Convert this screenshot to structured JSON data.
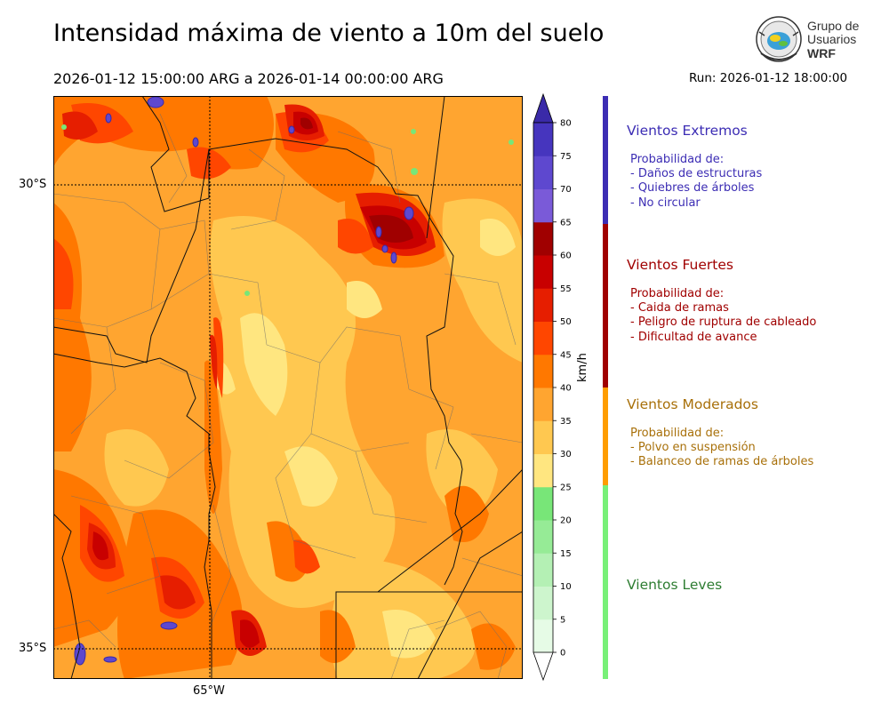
{
  "header": {
    "title": "Intensidad máxima de viento a 10m del suelo",
    "period": "2026-01-12 15:00:00 ARG  a  2026-01-14 00:00:00 ARG",
    "run": "Run: 2026-01-12 18:00:00"
  },
  "logo": {
    "line1": "Grupo de",
    "line2": "Usuarios",
    "line3": "WRF",
    "icon": "globe-seal-icon"
  },
  "map": {
    "lat_labels": [
      "30°S",
      "35°S"
    ],
    "lon_labels": [
      "65°W"
    ],
    "gridlines": "dotted"
  },
  "colorbar": {
    "unit": "km/h",
    "ticks": [
      "0",
      "5",
      "10",
      "15",
      "20",
      "25",
      "30",
      "35",
      "40",
      "45",
      "50",
      "55",
      "60",
      "65",
      "70",
      "75",
      "80"
    ],
    "colors": [
      "#e6fbe6",
      "#cdf5cd",
      "#b4f0b4",
      "#96eb96",
      "#78e678",
      "#ffe680",
      "#ffc850",
      "#ffa530",
      "#ff7800",
      "#ff4600",
      "#e61e00",
      "#c80000",
      "#a00000",
      "#7a5ad8",
      "#5e48cf",
      "#4635be"
    ],
    "extend_color": "#3a2aa8"
  },
  "categories": [
    {
      "title": "Vientos Extremos",
      "color": "#3c2db4",
      "bar_color": "#3c2db4",
      "lines": [
        "Probabilidad de:",
        "- Daños de estructuras",
        "- Quiebres de árboles",
        "- No circular"
      ]
    },
    {
      "title": "Vientos Fuertes",
      "color": "#a00000",
      "bar_color": "#a00000",
      "lines": [
        "Probabilidad de:",
        "- Caida de ramas",
        "- Peligro de ruptura de cableado",
        "- Dificultad de avance"
      ]
    },
    {
      "title": "Vientos Moderados",
      "color": "#a8700a",
      "bar_color": "#ff9d00",
      "lines": [
        "Probabilidad de:",
        "- Polvo en suspensión",
        "- Balanceo de ramas de árboles"
      ]
    },
    {
      "title": "Vientos Leves",
      "color": "#2e7d32",
      "bar_color": "#78f078",
      "lines": []
    }
  ]
}
